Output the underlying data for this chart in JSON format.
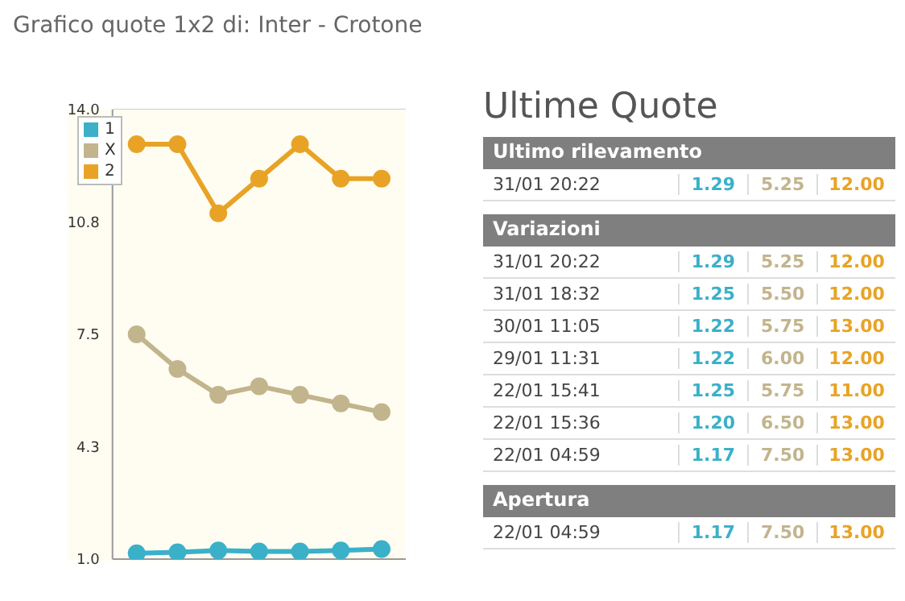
{
  "chart_data": [
    {
      "type": "line",
      "title": "Grafico quote 1x2 di: Inter - Crotone",
      "categories": [
        null,
        null,
        null,
        null,
        null,
        null,
        null
      ],
      "series": [
        {
          "name": "1",
          "color": "#3bb0c9",
          "values": [
            1.17,
            1.2,
            1.25,
            1.22,
            1.22,
            1.25,
            1.29
          ]
        },
        {
          "name": "X",
          "color": "#c2b48c",
          "values": [
            7.5,
            6.5,
            5.75,
            6.0,
            5.75,
            5.5,
            5.25
          ]
        },
        {
          "name": "2",
          "color": "#e8a326",
          "values": [
            13,
            13,
            11,
            12,
            13,
            12,
            12
          ]
        }
      ],
      "ylim": [
        1.0,
        14.0
      ],
      "yticks": [
        {
          "value": 1,
          "label": "1.0"
        },
        {
          "value": 4.25,
          "label": "4.3"
        },
        {
          "value": 7.5,
          "label": "7.5"
        },
        {
          "value": 10.75,
          "label": "10.8"
        },
        {
          "value": 14,
          "label": "14.0"
        }
      ],
      "grid": "y",
      "legend": "top left",
      "marker": "circle",
      "line_style": "solid"
    },
    {
      "type": "other",
      "title": "Ultime Quote",
      "annotations": [
        "Ultimo rilevamento",
        "Variazioni",
        "Apertura"
      ],
      "categories": [
        "31/01 20:22",
        "31/01 20:22",
        "31/01 18:32",
        "30/01 11:05",
        "29/01 11:31",
        "22/01 15:41",
        "22/01 15:36",
        "22/01 04:59",
        "22/01 04:59"
      ],
      "series": [
        {
          "color": "#3bb0c9",
          "values": [
            1.29,
            1.29,
            1.25,
            1.22,
            1.22,
            1.25,
            1.2,
            1.17,
            1.17
          ],
          "value_labels": [
            "1.29",
            "1.29",
            "1.25",
            "1.22",
            "1.22",
            "1.25",
            "1.20",
            "1.17",
            "1.17"
          ]
        },
        {
          "color": "#c2b48c",
          "values": [
            5.25,
            5.25,
            5.5,
            5.75,
            6.0,
            5.75,
            6.5,
            7.5,
            7.5
          ],
          "value_labels": [
            "5.25",
            "5.25",
            "5.50",
            "5.75",
            "6.00",
            "5.75",
            "6.50",
            "7.50",
            "7.50"
          ]
        },
        {
          "color": "#e8a326",
          "values": [
            12,
            12,
            12,
            13,
            12,
            11,
            13,
            13,
            13
          ],
          "value_labels": [
            "12.00",
            "12.00",
            "12.00",
            "13.00",
            "12.00",
            "11.00",
            "13.00",
            "13.00",
            "13.00"
          ]
        }
      ]
    }
  ]
}
